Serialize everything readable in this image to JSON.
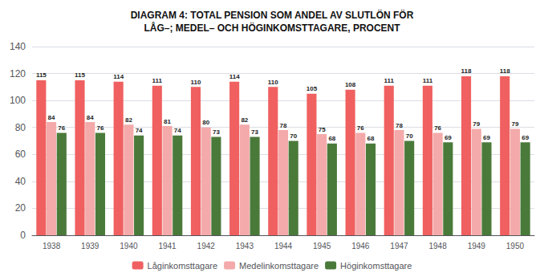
{
  "chart_data": {
    "type": "bar",
    "title": "DIAGRAM 4: TOTAL PENSION SOM ANDEL AV SLUTLÖN FÖR\nLÅG–; MEDEL– OCH HÖGINKOMSTTAGARE, PROCENT",
    "categories": [
      "1938",
      "1939",
      "1940",
      "1941",
      "1942",
      "1943",
      "1944",
      "1945",
      "1946",
      "1947",
      "1948",
      "1949",
      "1950"
    ],
    "series": [
      {
        "name": "Låginkomsttagare",
        "color": "#F06060",
        "values": [
          115,
          115,
          114,
          111,
          110,
          114,
          110,
          105,
          108,
          111,
          111,
          118,
          118
        ]
      },
      {
        "name": "Medelinkomsttagare",
        "color": "#F4AAAA",
        "values": [
          84,
          84,
          82,
          81,
          80,
          82,
          78,
          75,
          76,
          78,
          76,
          79,
          79
        ]
      },
      {
        "name": "Höginkomsttagare",
        "color": "#4A7A3A",
        "values": [
          76,
          76,
          74,
          74,
          73,
          73,
          70,
          68,
          68,
          70,
          69,
          69,
          69
        ]
      }
    ],
    "ylim": [
      0,
      140
    ],
    "yticks": [
      0,
      20,
      40,
      60,
      80,
      100,
      120,
      140
    ],
    "grid": true,
    "data_labels": true,
    "legend": "bottom"
  }
}
